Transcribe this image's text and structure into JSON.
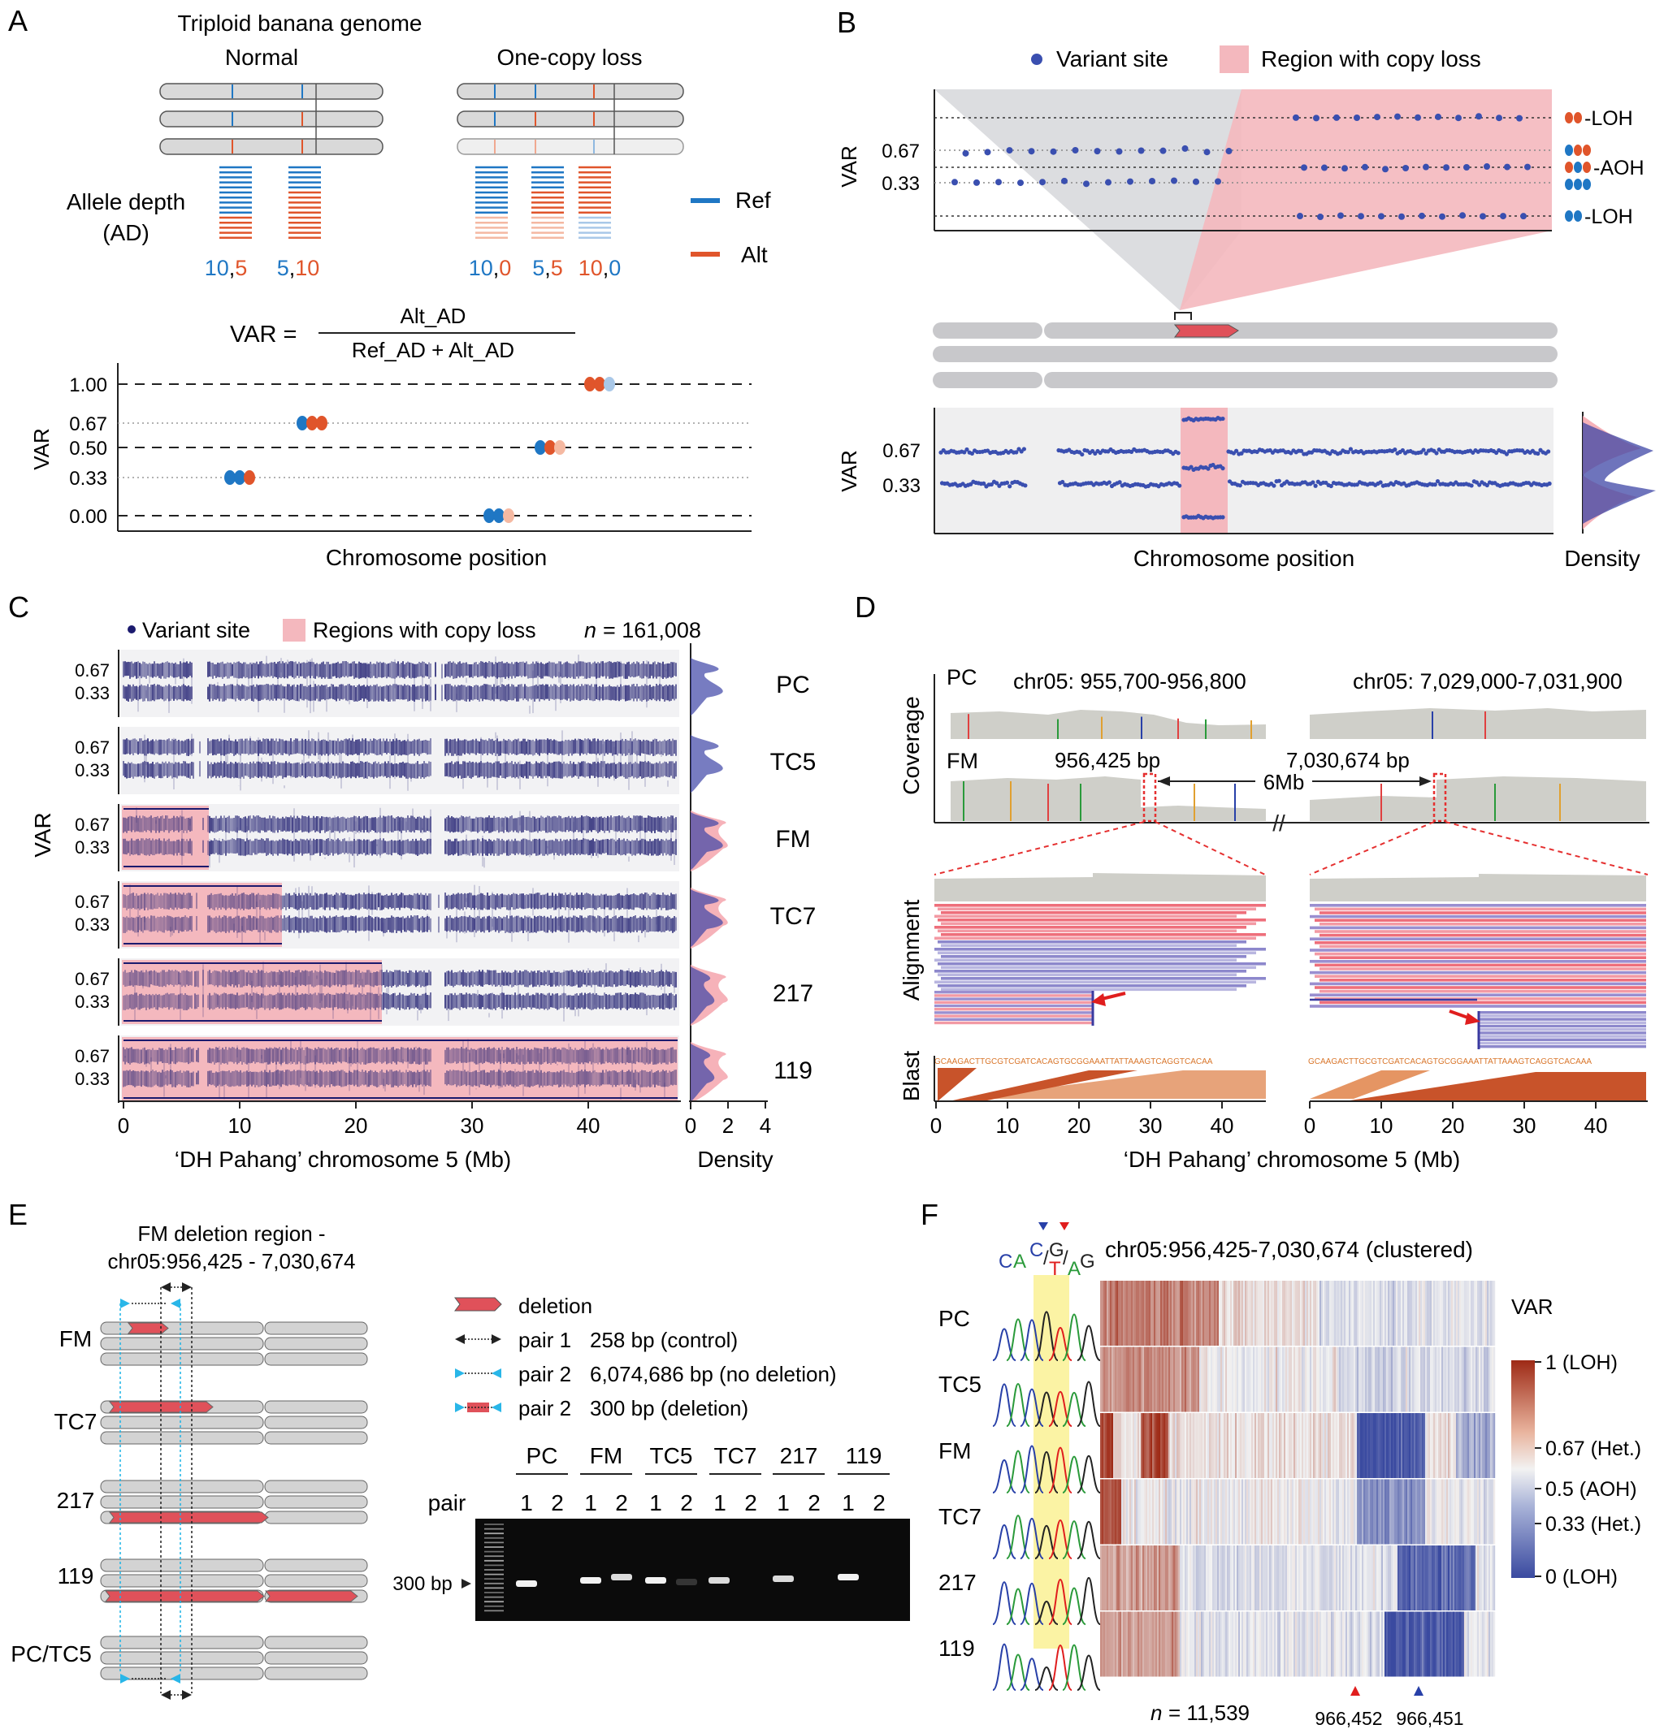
{
  "panels": {
    "A": {
      "letter": "A",
      "title": "Triploid banana genome",
      "normal_label": "Normal",
      "loss_label": "One-copy loss",
      "ad_label_1": "Allele depth",
      "ad_label_2": "(AD)",
      "ref_label": "Ref",
      "alt_label": "Alt",
      "normal_ad": [
        [
          "10",
          "5"
        ],
        [
          "5",
          "10"
        ]
      ],
      "loss_ad": [
        [
          "10",
          "0"
        ],
        [
          "5",
          "5"
        ],
        [
          "10",
          "0"
        ]
      ],
      "var_eq": "VAR =",
      "numerator": "Alt_AD",
      "denominator": "Ref_AD + Alt_AD",
      "ylabel": "VAR",
      "yticks": [
        "1.00",
        "0.67",
        "0.50",
        "0.33",
        "0.00"
      ],
      "xlabel": "Chromosome position"
    },
    "B": {
      "letter": "B",
      "legend_variant": "Variant site",
      "legend_region": "Region with copy loss",
      "ylabel": "VAR",
      "yticks": [
        "0.67",
        "0.33"
      ],
      "side_labels": [
        "-LOH",
        "-AOH",
        "-LOH"
      ],
      "xlabel": "Chromosome position",
      "density_label": "Density"
    },
    "C": {
      "letter": "C",
      "legend_variant": "Variant site",
      "legend_region": "Regions with copy loss",
      "n_label": "n",
      "n_value": "= 161,008",
      "ylabel": "VAR",
      "yticks": [
        "0.67",
        "0.33"
      ],
      "samples": [
        "PC",
        "TC5",
        "FM",
        "TC7",
        "217",
        "119"
      ],
      "xticks": [
        "0",
        "10",
        "20",
        "30",
        "40"
      ],
      "density_ticks": [
        "0",
        "2",
        "4"
      ],
      "xlabel": "‘DH Pahang’ chromosome 5 (Mb)",
      "density_label": "Density"
    },
    "D": {
      "letter": "D",
      "pc_label": "PC",
      "fm_label": "FM",
      "region1": "chr05: 955,700-956,800",
      "region2": "chr05: 7,029,000-7,031,900",
      "bp1": "956,425 bp",
      "bp2": "7,030,674 bp",
      "distance": "6Mb",
      "coverage_label": "Coverage",
      "alignment_label": "Alignment",
      "blast_label": "Blast",
      "seq1": "GCAAGACTTGCGTCGATCACAGTGCGGAAATTATTAAAGTCAGGTCACAA",
      "seq2": "GCAAGACTTGCGTCGATCACAGTGCGGAAATTATTAAAGTCAGGTCACAAA",
      "xticks": [
        "0",
        "10",
        "20",
        "30",
        "40"
      ],
      "xlabel": "‘DH Pahang’ chromosome 5 (Mb)"
    },
    "E": {
      "letter": "E",
      "title_1": "FM deletion region -",
      "title_2": "chr05:956,425 - 7,030,674",
      "samples": [
        "FM",
        "TC7",
        "217",
        "119",
        "PC/TC5"
      ],
      "legend": [
        {
          "label": "deletion",
          "detail": ""
        },
        {
          "label": "pair 1",
          "detail": "258 bp (control)"
        },
        {
          "label": "pair 2",
          "detail": "6,074,686 bp (no deletion)"
        },
        {
          "label": "pair 2",
          "detail": "300 bp (deletion)"
        }
      ],
      "gel_samples": [
        "PC",
        "FM",
        "TC5",
        "TC7",
        "217",
        "119"
      ],
      "pair_label": "pair",
      "pair_numbers": [
        "1",
        "2"
      ],
      "marker_label": "300 bp"
    },
    "F": {
      "letter": "F",
      "title": "chr05:956,425-7,030,674 (clustered)",
      "samples": [
        "PC",
        "TC5",
        "FM",
        "TC7",
        "217",
        "119"
      ],
      "seq_letters": [
        "C",
        "A",
        "C",
        "/",
        "G",
        "/",
        "A",
        "G"
      ],
      "seq_alt_1": "T",
      "seq_alt_2": "A",
      "colorbar_title": "VAR",
      "colorbar_labels": [
        "1 (LOH)",
        "0.67 (Het.)",
        "0.5 (AOH)",
        "0.33 (Het.)",
        "0 (LOH)"
      ],
      "n_label": "n",
      "n_value": "= 11,539",
      "marker_1": "966,452",
      "marker_2": "966,451"
    }
  },
  "colors": {
    "ref": "#1f77c4",
    "alt": "#e0552b",
    "variant": "#3a4fb0",
    "dense": "#1b1a6e",
    "copyloss": "#f4b8be",
    "chromosome": "#d3d3d3",
    "heat_high": "#9e2a16",
    "heat_mid": "#f2f2f2",
    "heat_low": "#3a4aa0"
  }
}
